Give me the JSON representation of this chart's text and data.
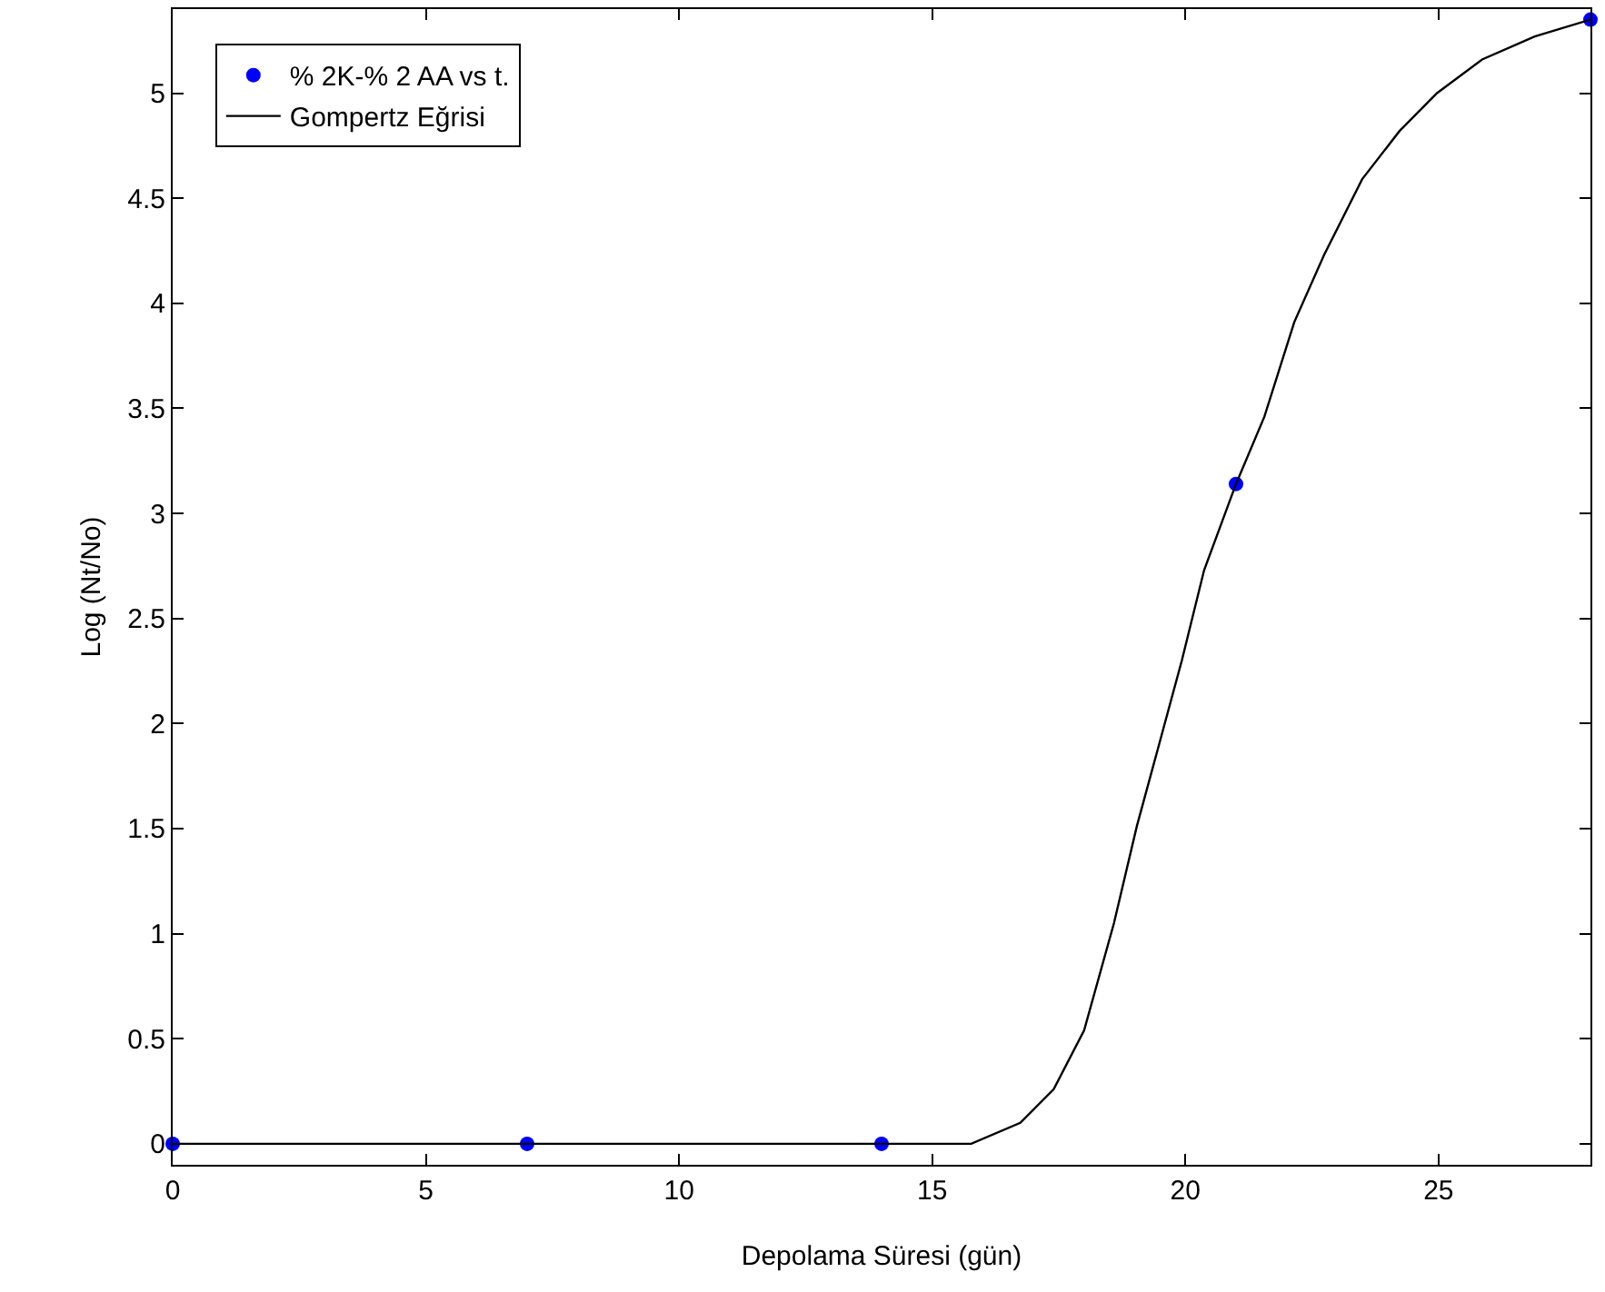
{
  "chart_data": {
    "type": "scatter",
    "xlabel": "Depolama Süresi (gün)",
    "ylabel": "Log (Nt/No)",
    "xlim": [
      0,
      28
    ],
    "xticks": [
      0,
      5,
      10,
      15,
      20,
      25
    ],
    "ylim": [
      -0.1,
      5.4
    ],
    "yticks": [
      0,
      0.5,
      1,
      1.5,
      2,
      2.5,
      3,
      3.5,
      4,
      4.5,
      5
    ],
    "grid": false,
    "legend": "top left",
    "series": [
      {
        "name": "% 2K-% 2 AA vs t.",
        "marker": "circle",
        "color": "#0000ff",
        "x": [
          0,
          7,
          14,
          21,
          28
        ],
        "values": [
          0,
          0,
          0,
          3.14,
          5.35
        ]
      },
      {
        "name": "Gompertz Eğrisi",
        "type": "line",
        "marker": "none",
        "line_style": "solid",
        "color": "#000000",
        "x": [
          0,
          15.77,
          16.74,
          17.4,
          18.0,
          18.59,
          19.04,
          19.48,
          19.93,
          20.37,
          21.0,
          21.56,
          22.15,
          22.74,
          23.49,
          24.23,
          24.97,
          25.86,
          26.9,
          28
        ],
        "values": [
          0,
          0,
          0.1,
          0.26,
          0.54,
          1.05,
          1.51,
          1.9,
          2.3,
          2.73,
          3.14,
          3.46,
          3.91,
          4.23,
          4.59,
          4.82,
          5.0,
          5.16,
          5.27,
          5.35
        ]
      }
    ]
  }
}
